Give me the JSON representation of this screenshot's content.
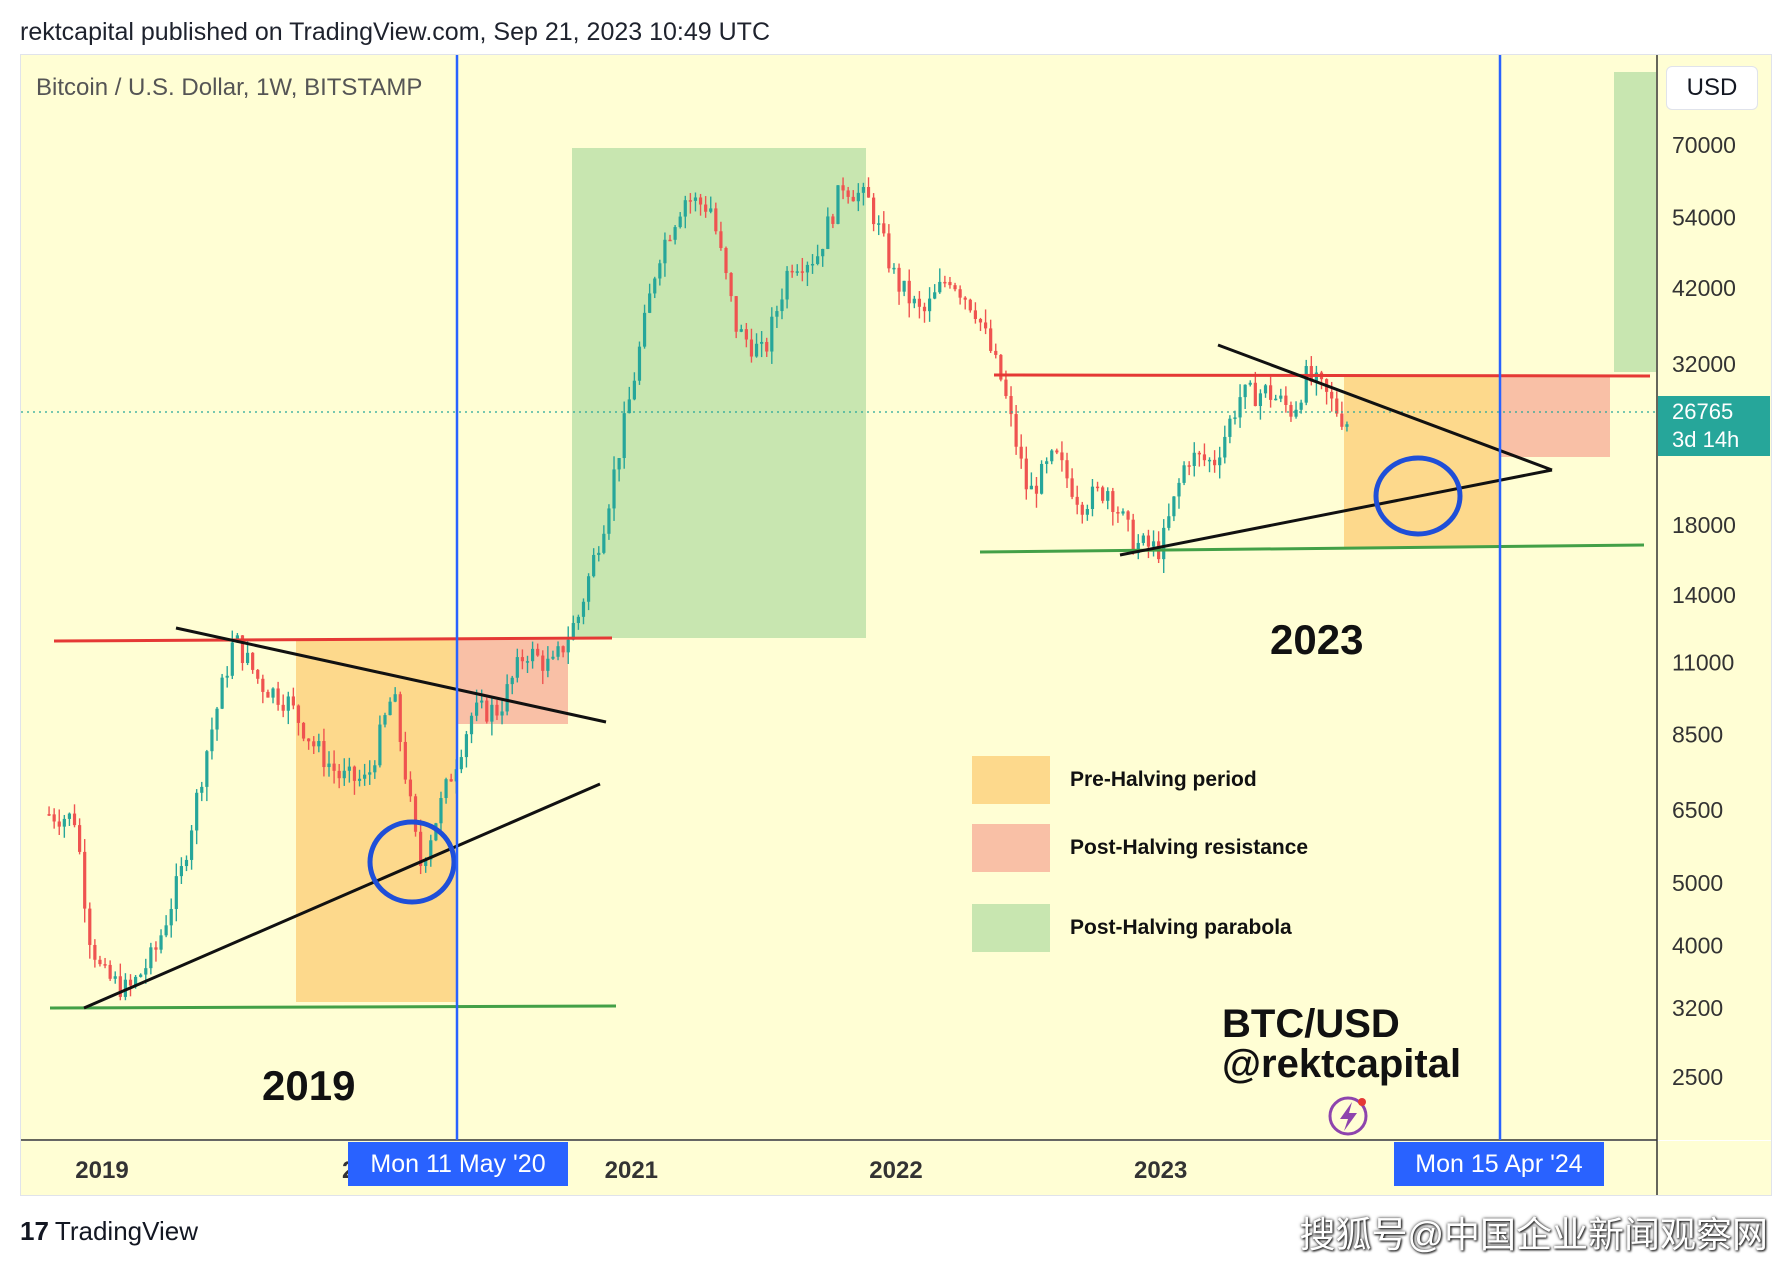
{
  "header": {
    "published_by": "rektcapital published on TradingView.com, Sep 21, 2023 10:49 UTC"
  },
  "chart": {
    "symbol_title": "Bitcoin / U.S. Dollar, 1W, BITSTAMP",
    "currency": "USD",
    "last_price": "26765",
    "countdown": "3d 14h",
    "year_labels": [
      "2019",
      "2023"
    ],
    "watermark_line1": "BTC/USD",
    "watermark_line2": "@rektcapital",
    "halving_dates": [
      "Mon 11 May '20",
      "Mon 15 Apr '24"
    ]
  },
  "legend": [
    {
      "label": "Pre-Halving period",
      "color": "#fdd98c"
    },
    {
      "label": "Post-Halving resistance",
      "color": "#f9c0a6"
    },
    {
      "label": "Post-Halving parabola",
      "color": "#c8e6b0"
    }
  ],
  "colors": {
    "background": "#fffed4",
    "up_candle": "#26a69a",
    "down_candle": "#ef5350",
    "halving_line": "#2962ff",
    "resistance_line": "#e53935",
    "support_line": "#43a047",
    "circle": "#1f4fd8"
  },
  "chart_data": {
    "type": "candlestick",
    "title": "Bitcoin / U.S. Dollar, 1W, BITSTAMP",
    "y_scale": "log",
    "y_ticks": [
      70000,
      54000,
      42000,
      32000,
      18000,
      14000,
      11000,
      8500,
      6500,
      5000,
      4000,
      3200,
      2500
    ],
    "x_ticks": [
      "2019",
      "2021",
      "2022",
      "2023"
    ],
    "x_tick_partial": "2",
    "last_price": 26765,
    "price_path": [
      {
        "t": 2018.8,
        "p": 6400
      },
      {
        "t": 2018.9,
        "p": 6300
      },
      {
        "t": 2018.95,
        "p": 4200
      },
      {
        "t": 2019.0,
        "p": 3600
      },
      {
        "t": 2019.1,
        "p": 3400
      },
      {
        "t": 2019.2,
        "p": 3900
      },
      {
        "t": 2019.3,
        "p": 5200
      },
      {
        "t": 2019.4,
        "p": 8200
      },
      {
        "t": 2019.5,
        "p": 12000
      },
      {
        "t": 2019.6,
        "p": 10200
      },
      {
        "t": 2019.7,
        "p": 9600
      },
      {
        "t": 2019.8,
        "p": 8200
      },
      {
        "t": 2019.9,
        "p": 7300
      },
      {
        "t": 2020.0,
        "p": 7200
      },
      {
        "t": 2020.1,
        "p": 9900
      },
      {
        "t": 2020.2,
        "p": 5300
      },
      {
        "t": 2020.3,
        "p": 7000
      },
      {
        "t": 2020.4,
        "p": 9200
      },
      {
        "t": 2020.5,
        "p": 9300
      },
      {
        "t": 2020.6,
        "p": 11500
      },
      {
        "t": 2020.7,
        "p": 10800
      },
      {
        "t": 2020.8,
        "p": 13000
      },
      {
        "t": 2020.9,
        "p": 18500
      },
      {
        "t": 2021.0,
        "p": 29000
      },
      {
        "t": 2021.1,
        "p": 47000
      },
      {
        "t": 2021.2,
        "p": 58000
      },
      {
        "t": 2021.3,
        "p": 56000
      },
      {
        "t": 2021.4,
        "p": 36000
      },
      {
        "t": 2021.5,
        "p": 33000
      },
      {
        "t": 2021.6,
        "p": 46000
      },
      {
        "t": 2021.7,
        "p": 47000
      },
      {
        "t": 2021.8,
        "p": 61000
      },
      {
        "t": 2021.9,
        "p": 57000
      },
      {
        "t": 2022.0,
        "p": 43000
      },
      {
        "t": 2022.1,
        "p": 38000
      },
      {
        "t": 2022.2,
        "p": 44000
      },
      {
        "t": 2022.3,
        "p": 39000
      },
      {
        "t": 2022.4,
        "p": 30000
      },
      {
        "t": 2022.5,
        "p": 20000
      },
      {
        "t": 2022.6,
        "p": 23000
      },
      {
        "t": 2022.7,
        "p": 19500
      },
      {
        "t": 2022.8,
        "p": 20500
      },
      {
        "t": 2022.9,
        "p": 16800
      },
      {
        "t": 2023.0,
        "p": 16500
      },
      {
        "t": 2023.1,
        "p": 23000
      },
      {
        "t": 2023.2,
        "p": 22500
      },
      {
        "t": 2023.3,
        "p": 28500
      },
      {
        "t": 2023.4,
        "p": 29000
      },
      {
        "t": 2023.5,
        "p": 27000
      },
      {
        "t": 2023.55,
        "p": 30500
      },
      {
        "t": 2023.6,
        "p": 29500
      },
      {
        "t": 2023.7,
        "p": 26000
      },
      {
        "t": 2023.72,
        "p": 26765
      }
    ]
  }
}
